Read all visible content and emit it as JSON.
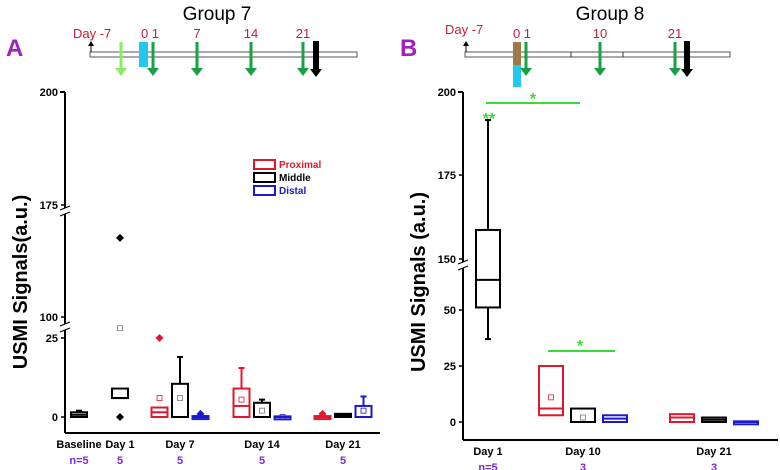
{
  "colors": {
    "proximal": "#e0182e",
    "middle": "#000000",
    "distal": "#1a1acc",
    "panel": "#a020c0",
    "day": "#c0203a",
    "n": "#7a2ad0",
    "arrow": "#18a048",
    "sig": "#33dd33",
    "cyan": "#22c8ee",
    "brown": "#9c7a4a",
    "pre": "#88ee66"
  },
  "legend": [
    "Proximal",
    "Middle",
    "Distal"
  ],
  "chart_data": [
    {
      "type": "box",
      "panel_label": "A",
      "title": "Group 7",
      "ylabel": "USMI Signals(a.u.)",
      "timeline": {
        "start": "Day -7",
        "labels": [
          "0 1",
          "7",
          "14",
          "21"
        ]
      },
      "yticks": [
        "0",
        "25",
        "100",
        "175",
        "200"
      ],
      "categories": [
        "Baseline",
        "Day 1",
        "Day 7",
        "Day 14",
        "Day 21"
      ],
      "n": [
        "n=5",
        "5",
        "5",
        "5",
        "5"
      ],
      "boxes": [
        {
          "cat": "Baseline",
          "series": "Middle",
          "q1": 0,
          "q3": 1.5,
          "median": 0.7,
          "wlo": 0,
          "whi": 2
        },
        {
          "cat": "Day 1",
          "series": "Middle",
          "q1": 6,
          "q3": 9,
          "median": 6,
          "mean": 60,
          "outliers": [
            0,
            153
          ]
        },
        {
          "cat": "Day 7",
          "series": "Proximal",
          "q1": 0,
          "q3": 3,
          "median": 1.5,
          "mean": 6,
          "outliers": [
            25
          ]
        },
        {
          "cat": "Day 7",
          "series": "Middle",
          "q1": 0,
          "q3": 10.5,
          "median": 0,
          "mean": 6,
          "whi": 19
        },
        {
          "cat": "Day 7",
          "series": "Distal",
          "q1": 0,
          "q3": 0.3,
          "median": 0,
          "outliers": [
            1
          ]
        },
        {
          "cat": "Day 14",
          "series": "Proximal",
          "q1": 0,
          "q3": 9,
          "median": 3.5,
          "mean": 5.5,
          "whi": 15.5
        },
        {
          "cat": "Day 14",
          "series": "Middle",
          "q1": 0,
          "q3": 4.5,
          "median": 0,
          "mean": 2,
          "whi": 5.5
        },
        {
          "cat": "Day 14",
          "series": "Distal",
          "q1": 0,
          "q3": 0.2,
          "median": 0,
          "mean": 0
        },
        {
          "cat": "Day 21",
          "series": "Proximal",
          "q1": 0,
          "q3": 0.3,
          "median": 0,
          "outliers": [
            1
          ]
        },
        {
          "cat": "Day 21",
          "series": "Middle",
          "q1": 0,
          "q3": 1,
          "median": 0.5
        },
        {
          "cat": "Day 21",
          "series": "Distal",
          "q1": 0,
          "q3": 3.5,
          "median": 0,
          "mean": 2,
          "whi": 6.5
        }
      ]
    },
    {
      "type": "box",
      "panel_label": "B",
      "title": "Group 8",
      "ylabel": "USMI Signals (a.u.)",
      "timeline": {
        "start": "Day -7",
        "labels": [
          "0 1",
          "10",
          "21"
        ]
      },
      "yticks": [
        "0",
        "25",
        "50",
        "150",
        "175",
        "200"
      ],
      "categories": [
        "Day 1",
        "Day 10",
        "Day 21"
      ],
      "n": [
        "n=5",
        "3",
        "3"
      ],
      "significance": [
        "*",
        "**",
        "*"
      ],
      "boxes": [
        {
          "cat": "Day 1",
          "series": "Middle",
          "q1": 55,
          "q3": 158.7,
          "median": 109,
          "wlo": 37,
          "whi": 191.6
        },
        {
          "cat": "Day 10",
          "series": "Proximal",
          "q1": 3,
          "q3": 25,
          "median": 6,
          "mean": 11
        },
        {
          "cat": "Day 10",
          "series": "Middle",
          "q1": 0,
          "q3": 6,
          "median": 0,
          "mean": 2
        },
        {
          "cat": "Day 10",
          "series": "Distal",
          "q1": 0,
          "q3": 3,
          "median": 1.5
        },
        {
          "cat": "Day 21",
          "series": "Proximal",
          "q1": 0,
          "q3": 3.5,
          "median": 2
        },
        {
          "cat": "Day 21",
          "series": "Middle",
          "q1": 0,
          "q3": 2,
          "median": 1
        },
        {
          "cat": "Day 21",
          "series": "Distal",
          "q1": 0,
          "q3": 0.3,
          "median": 0
        }
      ]
    }
  ]
}
